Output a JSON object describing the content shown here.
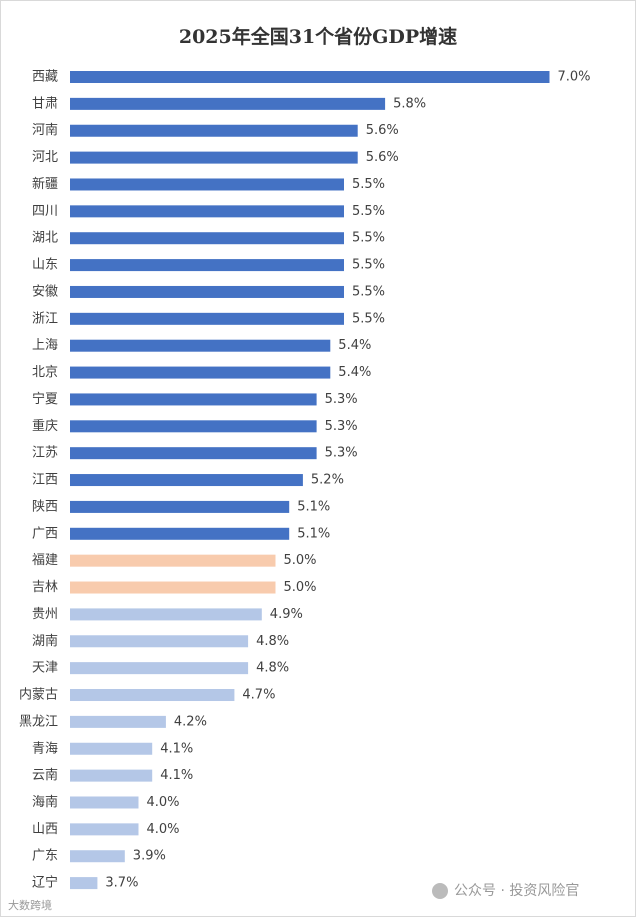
{
  "chart_data": {
    "type": "barh",
    "title": "2025年全国31个省份GDP增速",
    "categories": [
      "西藏",
      "甘肃",
      "河南",
      "河北",
      "新疆",
      "四川",
      "湖北",
      "山东",
      "安徽",
      "浙江",
      "上海",
      "北京",
      "宁夏",
      "重庆",
      "江苏",
      "江西",
      "陕西",
      "广西",
      "福建",
      "吉林",
      "贵州",
      "湖南",
      "天津",
      "内蒙古",
      "黑龙江",
      "青海",
      "云南",
      "海南",
      "山西",
      "广东",
      "辽宁"
    ],
    "values": [
      7.0,
      5.8,
      5.6,
      5.6,
      5.5,
      5.5,
      5.5,
      5.5,
      5.5,
      5.5,
      5.4,
      5.4,
      5.3,
      5.3,
      5.3,
      5.2,
      5.1,
      5.1,
      5.0,
      5.0,
      4.9,
      4.8,
      4.8,
      4.7,
      4.2,
      4.1,
      4.1,
      4.0,
      4.0,
      3.9,
      3.7
    ],
    "value_labels": [
      "7.0%",
      "5.8%",
      "5.6%",
      "5.6%",
      "5.5%",
      "5.5%",
      "5.5%",
      "5.5%",
      "5.5%",
      "5.5%",
      "5.4%",
      "5.4%",
      "5.3%",
      "5.3%",
      "5.3%",
      "5.2%",
      "5.1%",
      "5.1%",
      "5.0%",
      "5.0%",
      "4.9%",
      "4.8%",
      "4.8%",
      "4.7%",
      "4.2%",
      "4.1%",
      "4.1%",
      "4.0%",
      "4.0%",
      "3.9%",
      "3.7%"
    ],
    "colors": [
      "#4472c4",
      "#4472c4",
      "#4472c4",
      "#4472c4",
      "#4472c4",
      "#4472c4",
      "#4472c4",
      "#4472c4",
      "#4472c4",
      "#4472c4",
      "#4472c4",
      "#4472c4",
      "#4472c4",
      "#4472c4",
      "#4472c4",
      "#4472c4",
      "#4472c4",
      "#4472c4",
      "#f8cbad",
      "#f8cbad",
      "#b4c7e7",
      "#b4c7e7",
      "#b4c7e7",
      "#b4c7e7",
      "#b4c7e7",
      "#b4c7e7",
      "#b4c7e7",
      "#b4c7e7",
      "#b4c7e7",
      "#b4c7e7",
      "#b4c7e7"
    ],
    "xlim": [
      3.5,
      7.5
    ]
  },
  "watermarks": [
    "公众号 · 投资风险官",
    "大数跨境"
  ]
}
